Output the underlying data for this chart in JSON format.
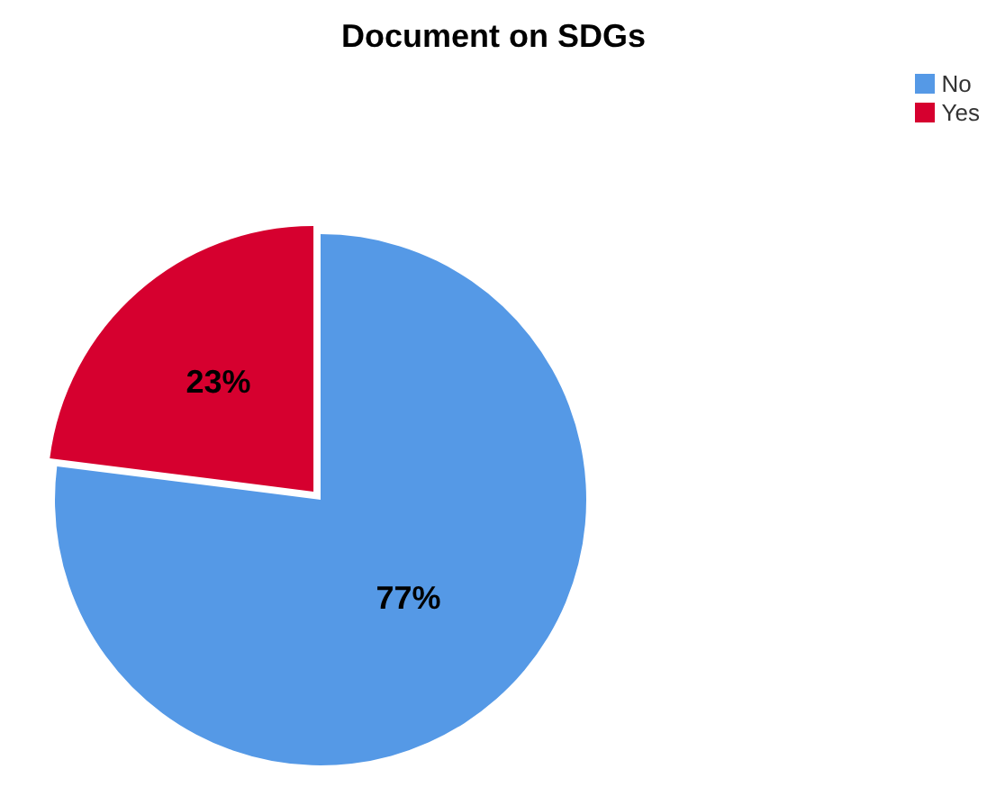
{
  "chart_data": {
    "type": "pie",
    "title": "Document on SDGs",
    "categories": [
      "No",
      "Yes"
    ],
    "values": [
      77,
      23
    ],
    "colors": [
      "#5599e6",
      "#d6002f"
    ],
    "value_labels": [
      "77%",
      "23%"
    ],
    "legend": "top right"
  }
}
